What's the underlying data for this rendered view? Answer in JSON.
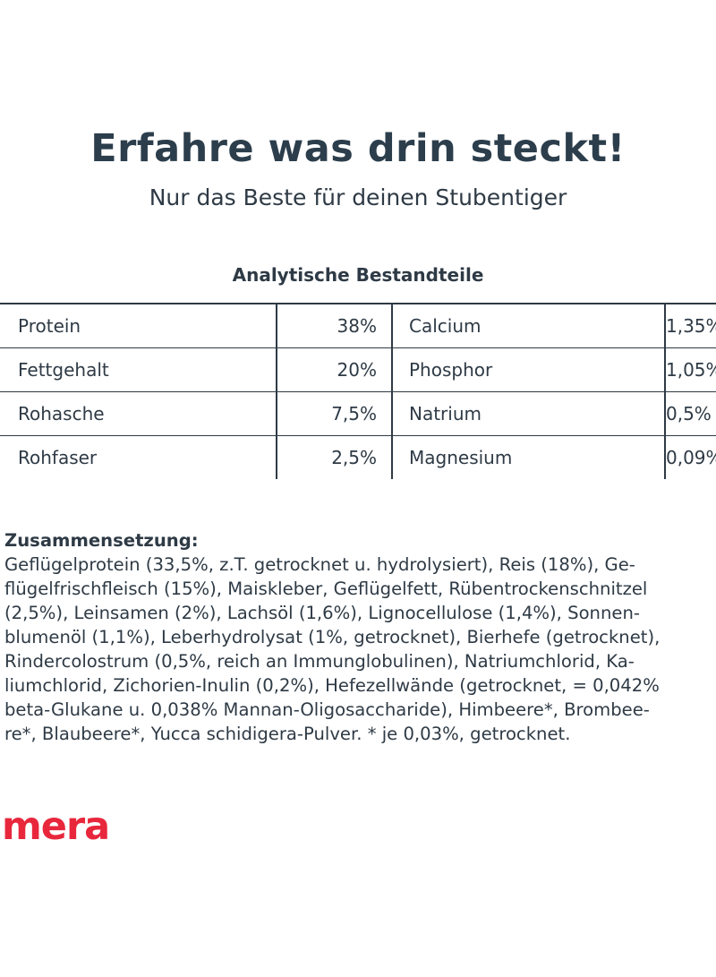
{
  "header": {
    "title": "Erfahre was drin steckt!",
    "subtitle": "Nur das Beste für deinen Stubentiger"
  },
  "analysis": {
    "title": "Analytische Bestandteile",
    "rows": [
      {
        "left_name": "Protein",
        "left_value": "38%",
        "right_name": "Calcium",
        "right_value": "1,35%"
      },
      {
        "left_name": "Fettgehalt",
        "left_value": "20%",
        "right_name": "Phosphor",
        "right_value": "1,05%"
      },
      {
        "left_name": "Rohasche",
        "left_value": "7,5%",
        "right_name": "Natrium",
        "right_value": "0,5%"
      },
      {
        "left_name": "Rohfaser",
        "left_value": "2,5%",
        "right_name": "Magnesium",
        "right_value": "0,09%"
      }
    ]
  },
  "composition": {
    "heading": "Zusammensetzung:",
    "lines": [
      "Geflügelprotein (33,5%, z.T. getrocknet u. hydrolysiert), Reis (18%), Ge-",
      "flügelfrischfleisch (15%), Maiskleber, Geflügelfett, Rübentrockenschnitzel",
      "(2,5%), Leinsamen (2%), Lachsöl (1,6%), Lignocellulose (1,4%), Sonnen-",
      "blumenöl (1,1%), Leberhydrolysat (1%, getrocknet), Bierhefe (getrocknet),",
      "Rindercolostrum (0,5%, reich an Immunglobulinen), Natriumchlorid, Ka-",
      "liumchlorid, Zichorien-Inulin (0,2%), Hefezellwände (getrocknet, = 0,042%",
      "beta-Glukane u. 0,038% Mannan-Oligosaccharide), Himbeere*, Brombee-",
      "re*, Blaubeere*, Yucca schidigera-Pulver. * je 0,03%, getrocknet."
    ]
  },
  "brand": {
    "logo_text": "mera",
    "logo_color": "#e8273c"
  },
  "colors": {
    "text": "#2e3a45",
    "background": "#ffffff"
  }
}
